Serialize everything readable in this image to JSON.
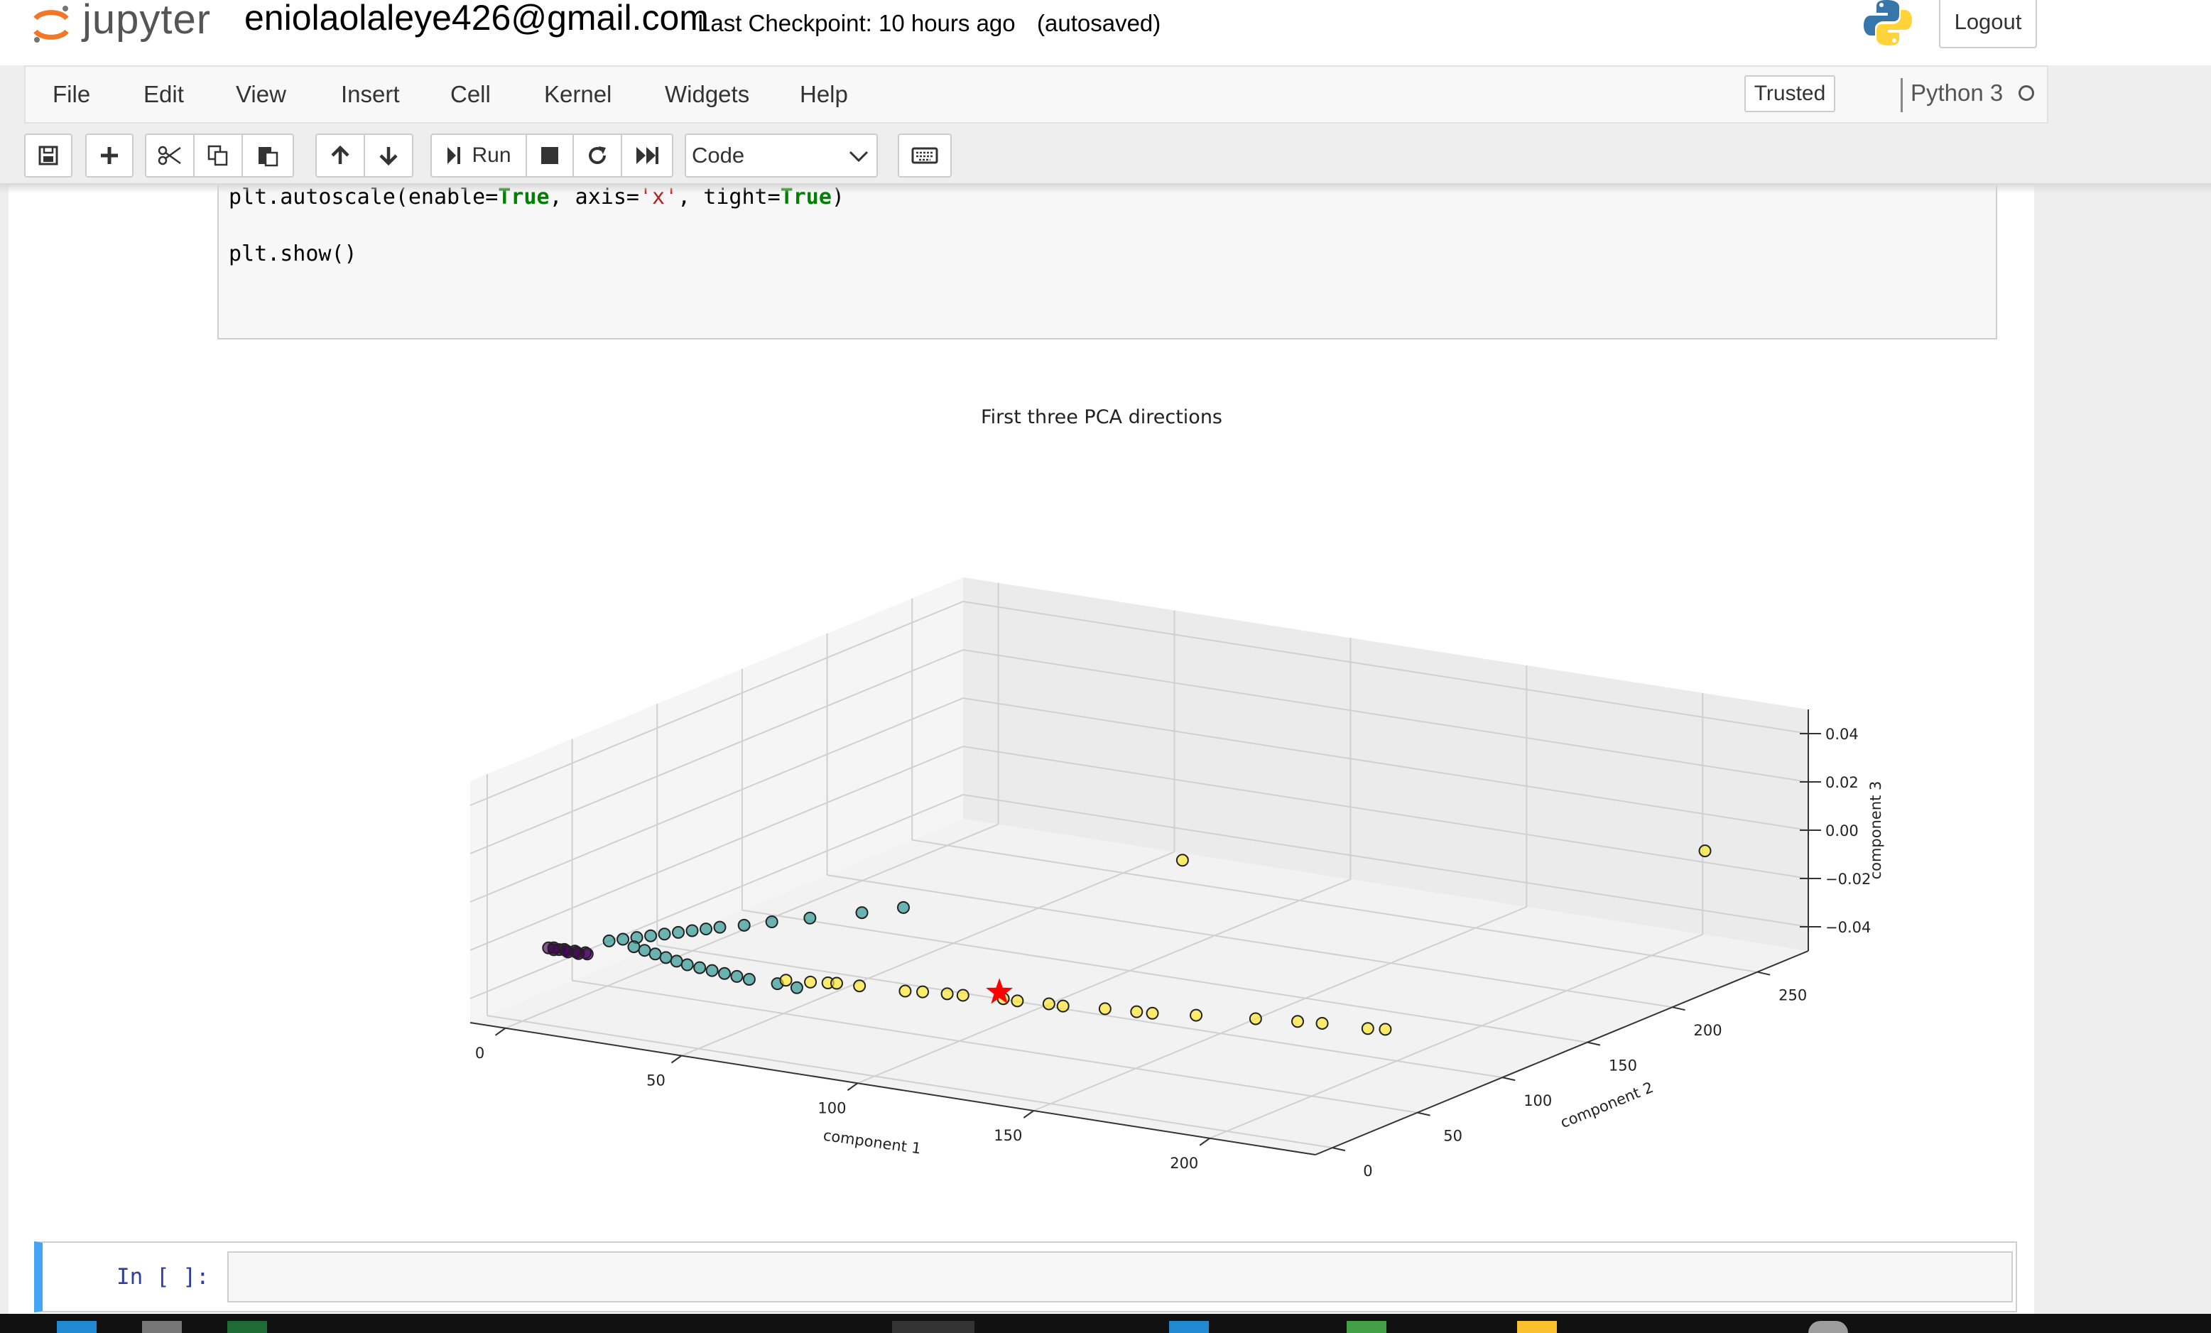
{
  "header": {
    "logo_text": "jupyter",
    "notebook_name": "eniolaolaleye426@gmail.com",
    "checkpoint": "Last Checkpoint: 10 hours ago",
    "autosave_status": "(autosaved)",
    "logout_label": "Logout"
  },
  "menubar": {
    "items": [
      "File",
      "Edit",
      "View",
      "Insert",
      "Cell",
      "Kernel",
      "Widgets",
      "Help"
    ],
    "trusted_label": "Trusted",
    "kernel_name": "Python 3"
  },
  "toolbar": {
    "run_label": "Run",
    "cell_type": "Code",
    "icons": [
      "save-icon",
      "plus-icon",
      "cut-icon",
      "copy-icon",
      "paste-icon",
      "arrow-up-icon",
      "arrow-down-icon",
      "run-icon",
      "stop-icon",
      "restart-icon",
      "fast-forward-icon",
      "keyboard-icon"
    ]
  },
  "code_cell": {
    "line1": {
      "prefix": "plt.autoscale(enable=",
      "kw1": "True",
      "mid1": ", axis=",
      "str1": "'x'",
      "mid2": ", tight=",
      "kw2": "True",
      "suffix": ")"
    },
    "line2": "plt.show()"
  },
  "chart_data": {
    "type": "scatter",
    "projection": "3d",
    "title": "First three PCA directions",
    "xlabel": "component 1",
    "ylabel": "component 2",
    "zlabel": "component 3",
    "x_ticks": [
      "0",
      "50",
      "100",
      "150",
      "200"
    ],
    "y_ticks": [
      "0",
      "50",
      "100",
      "150",
      "200",
      "250"
    ],
    "z_ticks": [
      "−0.04",
      "−0.02",
      "0.00",
      "0.02",
      "0.04"
    ],
    "xlim": [
      -10,
      230
    ],
    "ylim": [
      -10,
      280
    ],
    "zlim": [
      -0.05,
      0.05
    ],
    "grid": true,
    "series": [
      {
        "color": "#440154",
        "points": [
          [
            5,
            5,
            -0.02
          ],
          [
            6,
            6,
            -0.02
          ],
          [
            7,
            4,
            -0.02
          ],
          [
            8,
            5,
            -0.02
          ],
          [
            9,
            6,
            -0.02
          ],
          [
            10,
            5,
            -0.02
          ],
          [
            11,
            4,
            -0.02
          ],
          [
            12,
            6,
            -0.02
          ],
          [
            13,
            5,
            -0.02
          ],
          [
            14,
            4,
            -0.02
          ],
          [
            15,
            6,
            -0.02
          ],
          [
            16,
            5,
            -0.02
          ]
        ]
      },
      {
        "color": "#21918c",
        "points": [
          [
            14,
            22,
            -0.02
          ],
          [
            16,
            26,
            -0.02
          ],
          [
            18,
            30,
            -0.02
          ],
          [
            20,
            34,
            -0.02
          ],
          [
            22,
            38,
            -0.02
          ],
          [
            24,
            42,
            -0.02
          ],
          [
            26,
            46,
            -0.02
          ],
          [
            28,
            50,
            -0.02
          ],
          [
            30,
            54,
            -0.02
          ],
          [
            34,
            60,
            -0.02
          ],
          [
            38,
            68,
            -0.02
          ],
          [
            44,
            78,
            -0.02
          ],
          [
            52,
            92,
            -0.02
          ],
          [
            58,
            104,
            -0.02
          ],
          [
            22,
            20,
            -0.02
          ],
          [
            26,
            18,
            -0.02
          ],
          [
            30,
            16,
            -0.02
          ],
          [
            34,
            14,
            -0.02
          ],
          [
            38,
            12,
            -0.02
          ],
          [
            42,
            10,
            -0.02
          ],
          [
            46,
            9,
            -0.02
          ],
          [
            50,
            8,
            -0.02
          ],
          [
            54,
            7,
            -0.02
          ],
          [
            58,
            6,
            -0.02
          ],
          [
            62,
            5,
            -0.02
          ],
          [
            70,
            5,
            -0.02
          ],
          [
            76,
            4,
            -0.02
          ]
        ]
      },
      {
        "color": "#fde725",
        "points": [
          [
            70,
            10,
            -0.02
          ],
          [
            76,
            12,
            -0.02
          ],
          [
            80,
            14,
            -0.02
          ],
          [
            82,
            15,
            -0.02
          ],
          [
            88,
            16,
            -0.02
          ],
          [
            100,
            18,
            -0.02
          ],
          [
            104,
            20,
            -0.02
          ],
          [
            110,
            22,
            -0.02
          ],
          [
            114,
            23,
            -0.02
          ],
          [
            124,
            26,
            -0.02
          ],
          [
            128,
            26,
            -0.02
          ],
          [
            136,
            28,
            -0.02
          ],
          [
            140,
            28,
            -0.02
          ],
          [
            150,
            32,
            -0.02
          ],
          [
            158,
            34,
            -0.02
          ],
          [
            162,
            35,
            -0.02
          ],
          [
            172,
            40,
            -0.02
          ],
          [
            186,
            46,
            -0.02
          ],
          [
            196,
            50,
            -0.02
          ],
          [
            202,
            52,
            -0.02
          ],
          [
            214,
            54,
            -0.02
          ],
          [
            218,
            56,
            -0.02
          ],
          [
            116,
            148,
            -0.0
          ],
          [
            219,
            242,
            0.0
          ]
        ]
      }
    ],
    "centroid": {
      "x": 120,
      "y": 32,
      "z": -0.02,
      "marker": "star",
      "color": "#ff0000"
    }
  },
  "empty_cell": {
    "prompt": "In [ ]:"
  }
}
